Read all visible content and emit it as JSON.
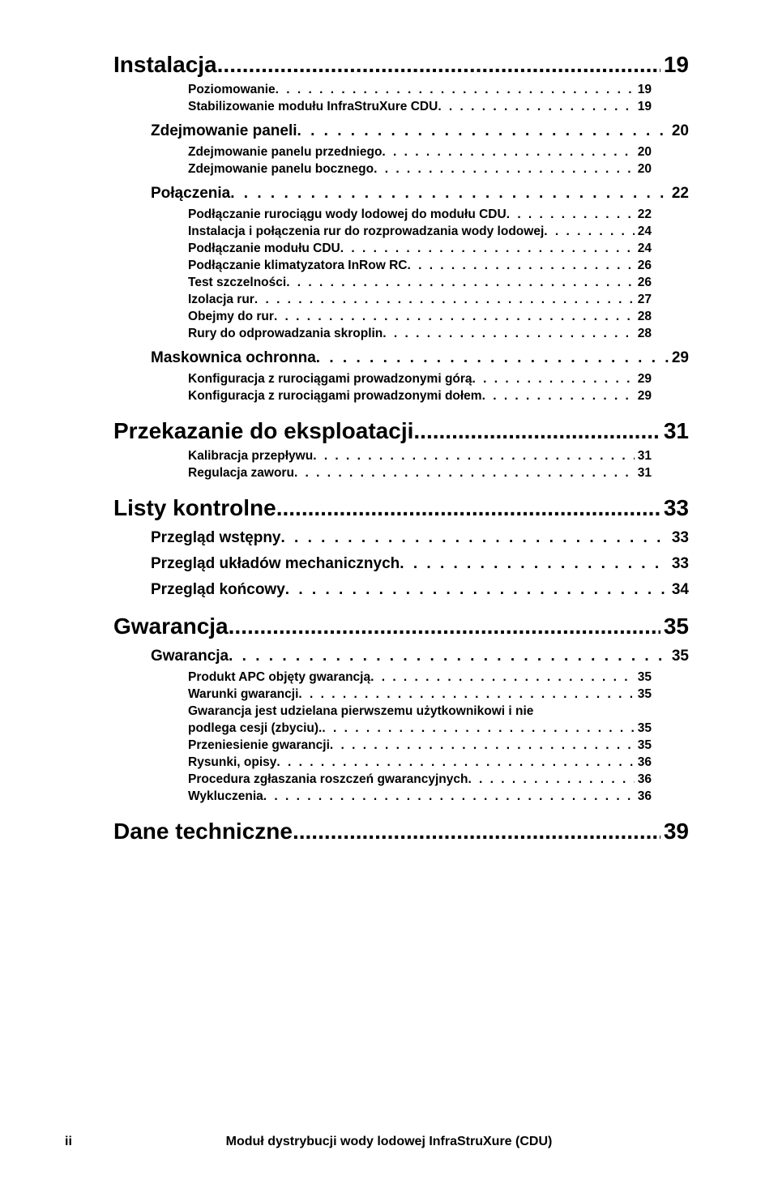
{
  "toc": [
    {
      "level": 1,
      "label": "Instalacja",
      "page": "19"
    },
    {
      "level": 3,
      "label": "Poziomowanie",
      "page": "19"
    },
    {
      "level": 3,
      "label": "Stabilizowanie modułu InfraStruXure CDU",
      "page": "19"
    },
    {
      "level": 2,
      "label": "Zdejmowanie paneli",
      "page": "20"
    },
    {
      "level": 3,
      "label": "Zdejmowanie panelu przedniego",
      "page": "20"
    },
    {
      "level": 3,
      "label": "Zdejmowanie panelu bocznego",
      "page": "20"
    },
    {
      "level": 2,
      "label": "Połączenia",
      "page": "22"
    },
    {
      "level": 3,
      "label": "Podłączanie rurociągu wody lodowej do modułu CDU",
      "page": "22"
    },
    {
      "level": 3,
      "label": "Instalacja i połączenia rur do rozprowadzania wody lodowej",
      "page": "24"
    },
    {
      "level": 3,
      "label": "Podłączanie modułu CDU",
      "page": "24"
    },
    {
      "level": 3,
      "label": "Podłączanie klimatyzatora InRow RC",
      "page": "26"
    },
    {
      "level": 3,
      "label": "Test szczelności",
      "page": "26"
    },
    {
      "level": 3,
      "label": "Izolacja rur",
      "page": "27"
    },
    {
      "level": 3,
      "label": "Obejmy do rur",
      "page": "28"
    },
    {
      "level": 3,
      "label": "Rury do odprowadzania skroplin",
      "page": "28"
    },
    {
      "level": 2,
      "label": "Maskownica ochronna",
      "page": "29"
    },
    {
      "level": 3,
      "label": "Konfiguracja z rurociągami prowadzonymi górą",
      "page": "29"
    },
    {
      "level": 3,
      "label": "Konfiguracja z rurociągami prowadzonymi dołem",
      "page": "29"
    },
    {
      "level": 1,
      "label": "Przekazanie do eksploatacji",
      "page": "31"
    },
    {
      "level": 3,
      "label": "Kalibracja przepływu",
      "page": "31"
    },
    {
      "level": 3,
      "label": "Regulacja zaworu",
      "page": "31"
    },
    {
      "level": 1,
      "label": "Listy kontrolne",
      "page": "33"
    },
    {
      "level": 2,
      "label": "Przegląd wstępny",
      "page": "33"
    },
    {
      "level": 2,
      "label": "Przegląd układów mechanicznych",
      "page": "33"
    },
    {
      "level": 2,
      "label": "Przegląd końcowy",
      "page": "34"
    },
    {
      "level": 1,
      "label": "Gwarancja",
      "page": "35"
    },
    {
      "level": 2,
      "label": "Gwarancja",
      "page": "35"
    },
    {
      "level": 3,
      "label": "Produkt APC objęty gwarancją",
      "page": "35"
    },
    {
      "level": 3,
      "label": "Warunki gwarancji",
      "page": "35"
    },
    {
      "level": 3,
      "label": "Gwarancja jest udzielana pierwszemu użytkownikowi i nie podlega cesji (zbyciu).",
      "page": "35",
      "wrap": true
    },
    {
      "level": 3,
      "label": "Przeniesienie gwarancji",
      "page": "35"
    },
    {
      "level": 3,
      "label": "Rysunki, opisy",
      "page": "36"
    },
    {
      "level": 3,
      "label": "Procedura zgłaszania roszczeń gwarancyjnych",
      "page": "36"
    },
    {
      "level": 3,
      "label": "Wykluczenia",
      "page": "36"
    },
    {
      "level": 1,
      "label": "Dane techniczne",
      "page": "39"
    }
  ],
  "footer": {
    "page_label": "ii",
    "title": "Moduł dystrybucji wody lodowej InfraStruXure (CDU)"
  },
  "style": {
    "dot_fill": ". . . . . . . . . . . . . . . . . . . . . . . . . . . . . . . . . . . . . . . . . . . . . . . . . . . . . . . . . . . . . . . . . . . . . . . . . . . . . . . . . . . . . . . . . . . . . . . . . . . . . . . . . . . . . . . . . . . . . . . . . . . . . ."
  }
}
